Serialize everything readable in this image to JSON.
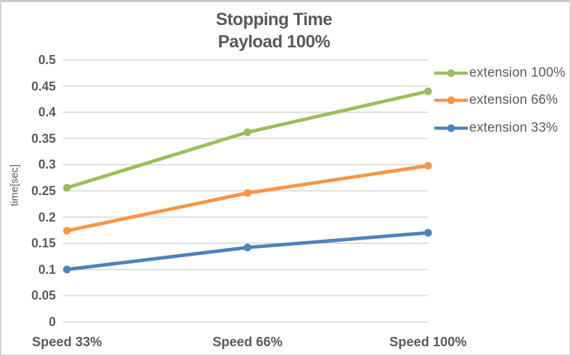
{
  "chart_data": {
    "type": "line",
    "title": "Stopping Time",
    "subtitle": "Payload 100%",
    "ylabel": "time[sec]",
    "xlabel": "",
    "categories": [
      "Speed 33%",
      "Speed 66%",
      "Speed 100%"
    ],
    "series": [
      {
        "name": "extension 100%",
        "color": "#9DBE59",
        "values": [
          0.256,
          0.362,
          0.44
        ]
      },
      {
        "name": "extension 66%",
        "color": "#F79646",
        "values": [
          0.174,
          0.246,
          0.298
        ]
      },
      {
        "name": "extension 33%",
        "color": "#4F81BD",
        "values": [
          0.1,
          0.142,
          0.17
        ]
      }
    ],
    "ylim": [
      0,
      0.5
    ],
    "ytick_step": 0.05,
    "yticks": [
      "0",
      "0.05",
      "0.1",
      "0.15",
      "0.2",
      "0.25",
      "0.3",
      "0.35",
      "0.4",
      "0.45",
      "0.5"
    ],
    "grid": true,
    "legend_position": "right",
    "colors": {
      "text": "#595959",
      "gridline": "#DBDBDB",
      "frame_border": "#D2D2D2",
      "background": "#FFFFFF"
    }
  }
}
